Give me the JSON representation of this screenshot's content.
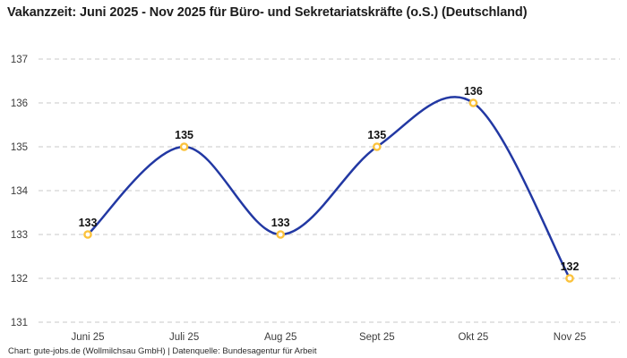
{
  "title": "Vakanzzeit: Juni 2025 - Nov 2025 für Büro- und Sekretariatskräfte (o.S.) (Deutschland)",
  "footer": "Chart: gute-jobs.de (Wollmilchsau GmbH) | Datenquelle: Bundesagentur für Arbeit",
  "colors": {
    "background": "#ffffff",
    "line": "#2238a3",
    "marker_ring": "#fbc23c",
    "marker_fill": "#ffffff",
    "grid": "#c9c9c9",
    "axis_text": "#3c3c3c",
    "data_label_text": "#121212",
    "title_text": "#1c1c1c"
  },
  "chart_data": {
    "type": "line",
    "title": "Vakanzzeit: Juni 2025 - Nov 2025 für Büro- und Sekretariatskräfte (o.S.) (Deutschland)",
    "categories": [
      "Juni 25",
      "Juli 25",
      "Aug 25",
      "Sept 25",
      "Okt 25",
      "Nov 25"
    ],
    "values": [
      133,
      135,
      133,
      135,
      136,
      132
    ],
    "data_labels": [
      "133",
      "135",
      "133",
      "135",
      "136",
      "132"
    ],
    "xlabel": "",
    "ylabel": "",
    "ylim": [
      131,
      137
    ],
    "yticks": [
      131,
      132,
      133,
      134,
      135,
      136,
      137
    ],
    "grid": "horizontal-dashed",
    "legend": "none",
    "smooth": true,
    "markers": "open-circle",
    "source": "Chart: gute-jobs.de (Wollmilchsau GmbH) | Datenquelle: Bundesagentur für Arbeit"
  }
}
